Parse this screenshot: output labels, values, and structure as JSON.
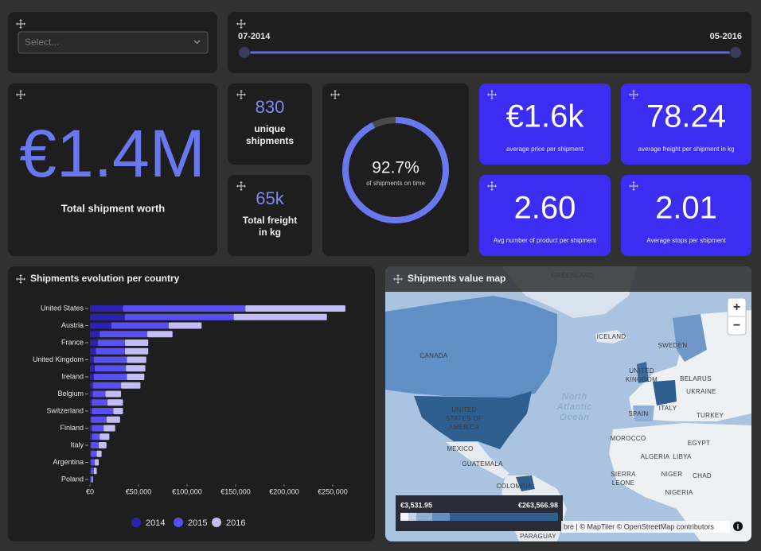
{
  "filter": {
    "placeholder": "Select..."
  },
  "date_range": {
    "start": "07-2014",
    "end": "05-2016"
  },
  "total_worth": {
    "value": "€1.4M",
    "label": "Total shipment worth"
  },
  "unique_shipments": {
    "value": "830",
    "label": [
      "unique",
      "shipments"
    ]
  },
  "total_freight": {
    "value": "65k",
    "label": [
      "Total freight",
      "in kg"
    ]
  },
  "gauge": {
    "value": 92.7,
    "value_label": "92.7%",
    "caption": "of shipments on time"
  },
  "tiles": [
    {
      "value": "€1.6k",
      "label": "average price per shipment"
    },
    {
      "value": "78.24",
      "label": "average freight per shipment in kg"
    },
    {
      "value": "2.60",
      "label": "Avg number of product per shipment"
    },
    {
      "value": "2.01",
      "label": "Average stops per shipment"
    }
  ],
  "chart_data": {
    "type": "bar",
    "orientation": "horizontal",
    "stacked": true,
    "title": "Shipments evolution per country",
    "categories": [
      "United States",
      null,
      "Austria",
      null,
      "France",
      null,
      "United Kingdom",
      null,
      "Ireland",
      null,
      "Belgium",
      null,
      "Switzerland",
      null,
      "Finland",
      null,
      "Italy",
      null,
      "Argentina",
      null,
      "Poland"
    ],
    "series": [
      {
        "name": "2014",
        "color": "#2b22b3",
        "values": [
          34000,
          36000,
          22000,
          10000,
          8000,
          6000,
          4000,
          5000,
          4000,
          3000,
          3000,
          2000,
          2000,
          1000,
          2000,
          2000,
          1000,
          1000,
          1000,
          1000,
          500
        ]
      },
      {
        "name": "2015",
        "color": "#5a4ff0",
        "values": [
          126000,
          112000,
          59000,
          49000,
          28000,
          30000,
          34000,
          32000,
          34000,
          29000,
          13000,
          16000,
          22000,
          16000,
          12000,
          8000,
          8000,
          6000,
          4000,
          3000,
          1500
        ]
      },
      {
        "name": "2016",
        "color": "#c3bdf6",
        "values": [
          103000,
          96000,
          34000,
          26000,
          24000,
          24000,
          20000,
          20000,
          18000,
          20000,
          16000,
          16000,
          10000,
          14000,
          12000,
          10000,
          8000,
          5000,
          4000,
          3000,
          1000
        ]
      }
    ],
    "xlim": [
      0,
      270000
    ],
    "xticks": [
      {
        "value": 0,
        "label": "€0"
      },
      {
        "value": 50000,
        "label": "€50,000"
      },
      {
        "value": 100000,
        "label": "€100,000"
      },
      {
        "value": 150000,
        "label": "€150,000"
      },
      {
        "value": 200000,
        "label": "€200,000"
      },
      {
        "value": 250000,
        "label": "€250,000"
      }
    ],
    "grid": false,
    "legend": "bottom"
  },
  "map": {
    "title": "Shipments value map",
    "legend": {
      "min": "€3,531.95",
      "max": "€263,566.98"
    },
    "zoom_in": "+",
    "zoom_out": "−",
    "info": "i",
    "attribution": "bre | © MapTiler © OpenStreetMap contributors",
    "labels": [
      "GREENLAND",
      "CANADA",
      "ICELAND",
      "SWEDEN",
      [
        "UNITED",
        "KINGDOM"
      ],
      "BELARUS",
      "UKRAINE",
      "SPAIN",
      "ITALY",
      "TURKEY",
      [
        "UNITED",
        "STATES OF",
        "AMERICA"
      ],
      "MEXICO",
      "GUATEMALA",
      "COLOMBIA",
      "MOROCCO",
      "EGYPT",
      "ALGERIA",
      "LIBYA",
      [
        "SIERRA",
        "LEONE"
      ],
      "NIGER",
      "CHAD",
      "NIGERIA",
      "PARAGUAY",
      [
        "North",
        "Atlantic",
        "Ocean"
      ]
    ]
  }
}
